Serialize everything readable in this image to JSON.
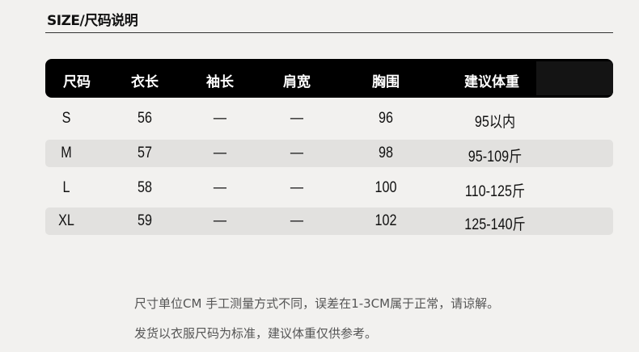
{
  "title": "SIZE/尺码说明",
  "headers": [
    "尺码",
    "衣长",
    "袖长",
    "肩宽",
    "胸围",
    "建议体重"
  ],
  "rows": [
    [
      "S",
      "56",
      "—",
      "—",
      "96",
      "95以内"
    ],
    [
      "M",
      "57",
      "—",
      "—",
      "98",
      "95-109斤"
    ],
    [
      "L",
      "58",
      "—",
      "—",
      "100",
      "110-125斤"
    ],
    [
      "XL",
      "59",
      "—",
      "—",
      "102",
      "125-140斤"
    ]
  ],
  "notes": [
    "尺寸单位CM 手工测量方式不同，误差在1-3CM属于正常，请谅解。",
    "发货以衣服尺码为标准，建议体重仅供参考。"
  ]
}
